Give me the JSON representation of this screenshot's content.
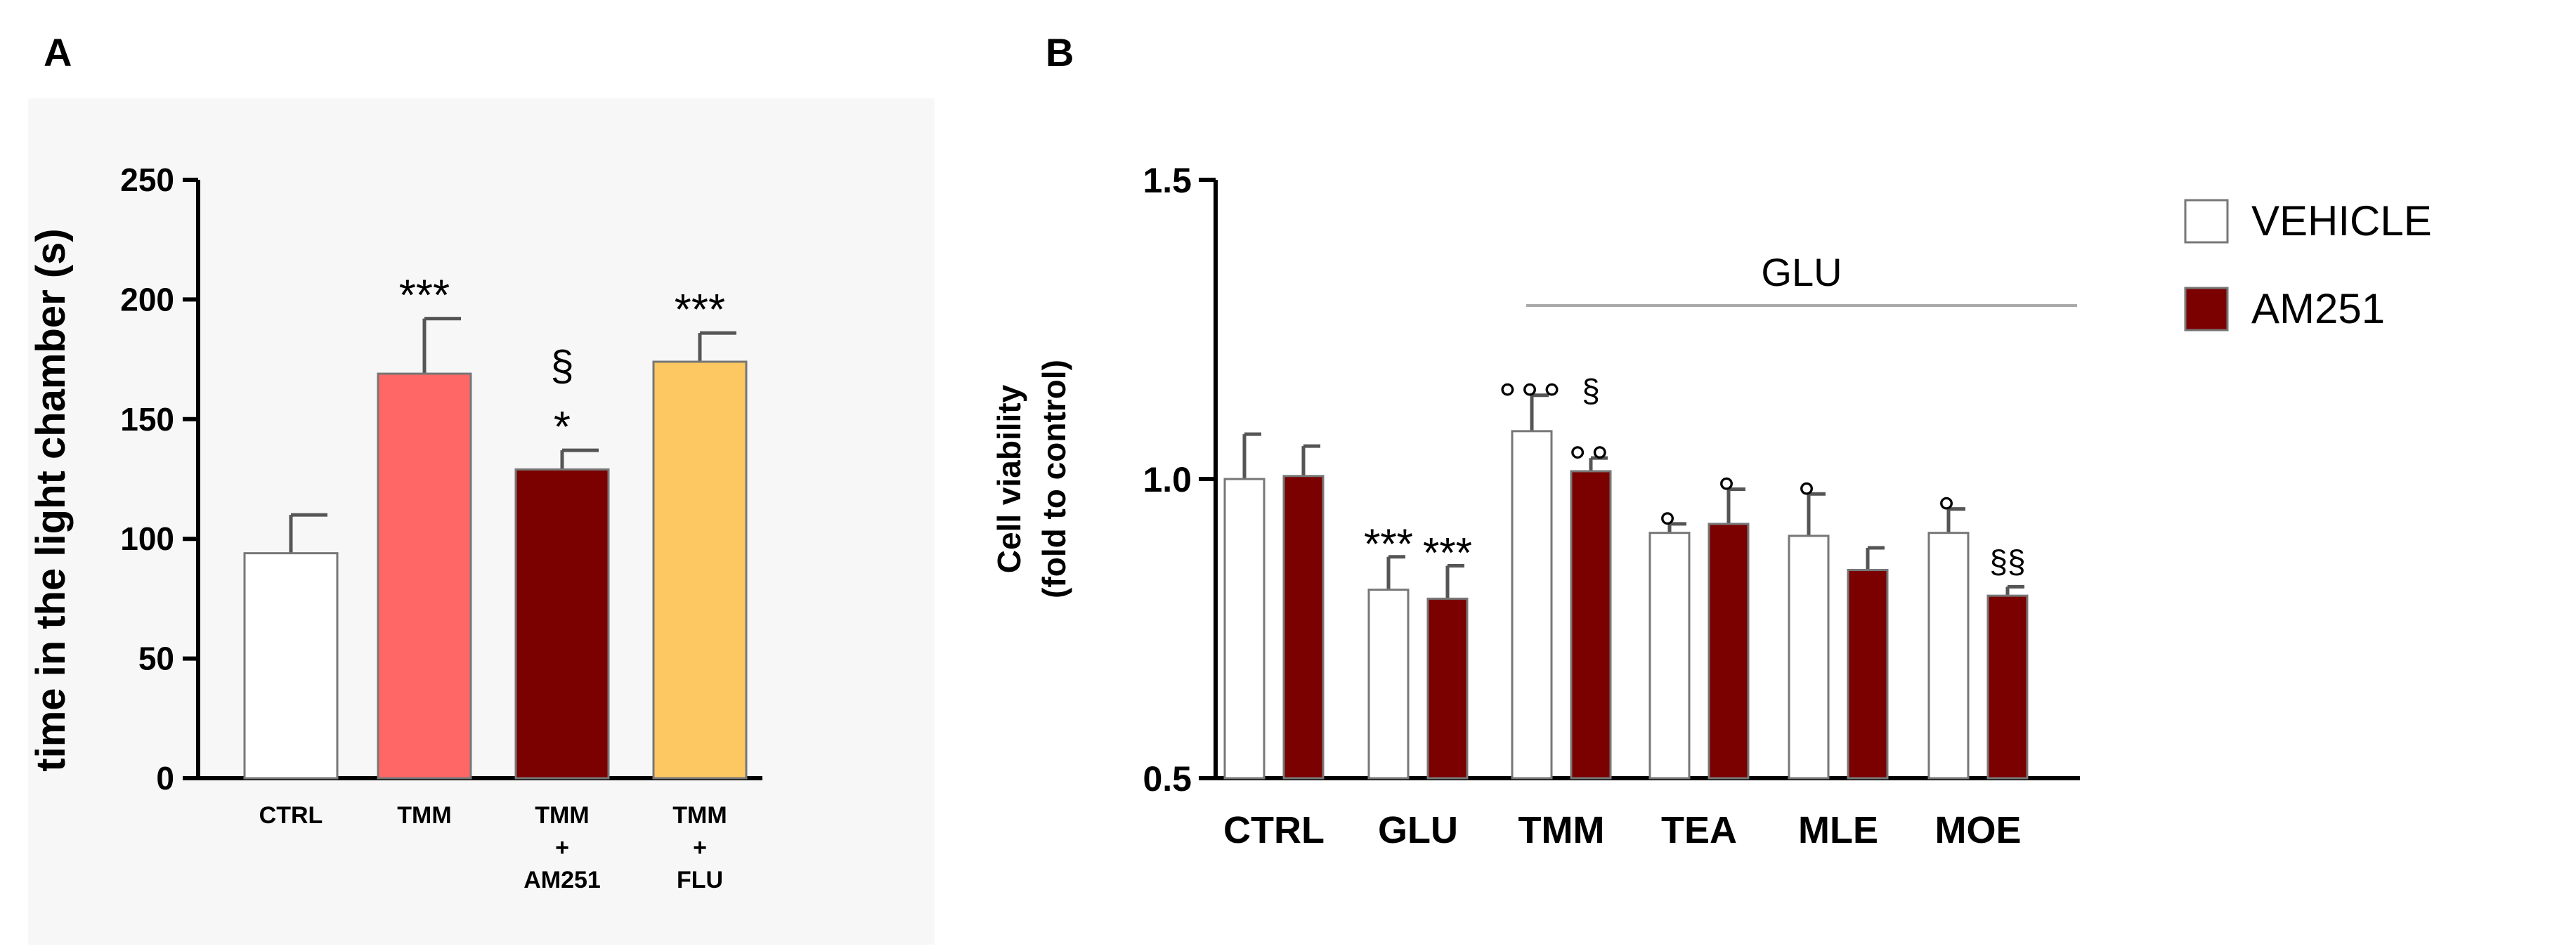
{
  "panels": {
    "a_label": "A",
    "b_label": "B"
  },
  "chart_data": [
    {
      "type": "bar",
      "panel": "A",
      "title": "",
      "xlabel": "",
      "ylabel": "time in the light chamber (s)",
      "ylim": [
        0,
        250
      ],
      "yticks": [
        0,
        50,
        100,
        150,
        200,
        250
      ],
      "categories": [
        [
          "CTRL"
        ],
        [
          "TMM"
        ],
        [
          "TMM",
          "+",
          "AM251"
        ],
        [
          "TMM",
          "+",
          "FLU"
        ]
      ],
      "values": [
        94,
        169,
        129,
        174
      ],
      "errors": [
        16,
        23,
        8,
        12
      ],
      "colors": [
        "#ffffff",
        "#ff6666",
        "#7b0000",
        "#fdc862"
      ],
      "annotations": [
        [],
        [
          "***"
        ],
        [
          "§",
          "*"
        ],
        [
          "***"
        ]
      ]
    },
    {
      "type": "bar",
      "panel": "B",
      "title": "",
      "xlabel": "",
      "ylabel_lines": [
        "Cell viability",
        "(fold to control)"
      ],
      "ylim": [
        0.5,
        1.5
      ],
      "yticks": [
        0.5,
        1.0,
        1.5
      ],
      "ytick_labels": [
        "0.5",
        "1.0",
        "1.5"
      ],
      "categories": [
        "CTRL",
        "GLU",
        "TMM",
        "TEA",
        "MLE",
        "MOE"
      ],
      "bracket_label": "GLU",
      "legend": {
        "position": "top-right"
      },
      "series": [
        {
          "name": "VEHICLE",
          "color": "#ffffff",
          "values": [
            1.0,
            0.815,
            1.08,
            0.91,
            0.905,
            0.91
          ],
          "errors": [
            0.075,
            0.055,
            0.06,
            0.015,
            0.07,
            0.04
          ],
          "annotations": [
            "",
            "***",
            "°°°",
            "°",
            "°",
            "°"
          ]
        },
        {
          "name": "AM251",
          "color": "#7b0000",
          "values": [
            1.005,
            0.8,
            1.013,
            0.925,
            0.848,
            0.805
          ],
          "errors": [
            0.05,
            0.055,
            0.022,
            0.058,
            0.037,
            0.015
          ],
          "annotations": [
            "",
            "***",
            "§|°°",
            "°",
            "",
            "§§"
          ]
        }
      ]
    }
  ]
}
